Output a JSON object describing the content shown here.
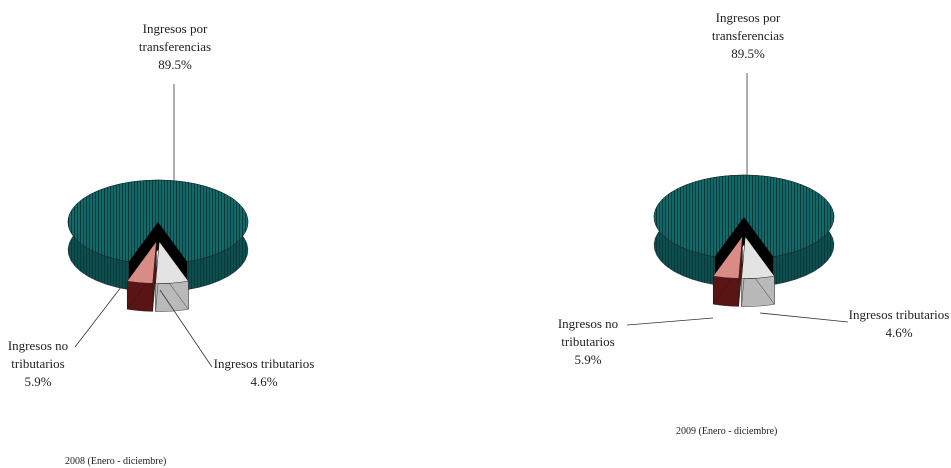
{
  "colors": {
    "transferencias_top": "#0f6b6b",
    "transferencias_side": "#0b4f50",
    "transferencias_hatch": "#083838",
    "no_tributarios_top": "#e3e3e3",
    "no_tributarios_side": "#b9b9b9",
    "tributarios_top": "#d98c86",
    "tributarios_side": "#5a1414",
    "shadow": "#000000",
    "leader": "#333333"
  },
  "chart_data": [
    {
      "type": "pie",
      "caption": "2008 (Enero - diciembre)",
      "slices": [
        {
          "key": "transferencias",
          "label_lines": [
            "Ingresos por",
            "transferencias"
          ],
          "value": 89.5,
          "value_label": "89.5%"
        },
        {
          "key": "no_tributarios",
          "label_lines": [
            "Ingresos no",
            "tributarios"
          ],
          "value": 5.9,
          "value_label": "5.9%"
        },
        {
          "key": "tributarios",
          "label_lines": [
            "Ingresos tributarios"
          ],
          "value": 4.6,
          "value_label": "4.6%"
        }
      ]
    },
    {
      "type": "pie",
      "caption": "2009 (Enero - diciembre)",
      "slices": [
        {
          "key": "transferencias",
          "label_lines": [
            "Ingresos por",
            "transferencias"
          ],
          "value": 89.5,
          "value_label": "89.5%"
        },
        {
          "key": "no_tributarios",
          "label_lines": [
            "Ingresos no",
            "tributarios"
          ],
          "value": 5.9,
          "value_label": "5.9%"
        },
        {
          "key": "tributarios",
          "label_lines": [
            "Ingresos tributarios"
          ],
          "value": 4.6,
          "value_label": "4.6%"
        }
      ]
    }
  ]
}
